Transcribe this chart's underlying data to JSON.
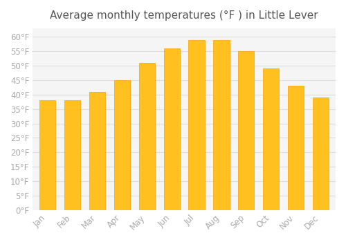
{
  "title": "Average monthly temperatures (°F ) in Little Lever",
  "months": [
    "Jan",
    "Feb",
    "Mar",
    "Apr",
    "May",
    "Jun",
    "Jul",
    "Aug",
    "Sep",
    "Oct",
    "Nov",
    "Dec"
  ],
  "values": [
    38,
    38,
    41,
    45,
    51,
    56,
    59,
    59,
    55,
    49,
    43,
    39
  ],
  "bar_color_face": "#FFC020",
  "bar_color_edge": "#FFA000",
  "background_color": "#FFFFFF",
  "plot_bg_color": "#F5F5F5",
  "grid_color": "#DDDDDD",
  "tick_label_color": "#AAAAAA",
  "title_color": "#555555",
  "ylim": [
    0,
    63
  ],
  "yticks": [
    0,
    5,
    10,
    15,
    20,
    25,
    30,
    35,
    40,
    45,
    50,
    55,
    60
  ],
  "title_fontsize": 11,
  "tick_fontsize": 8.5
}
